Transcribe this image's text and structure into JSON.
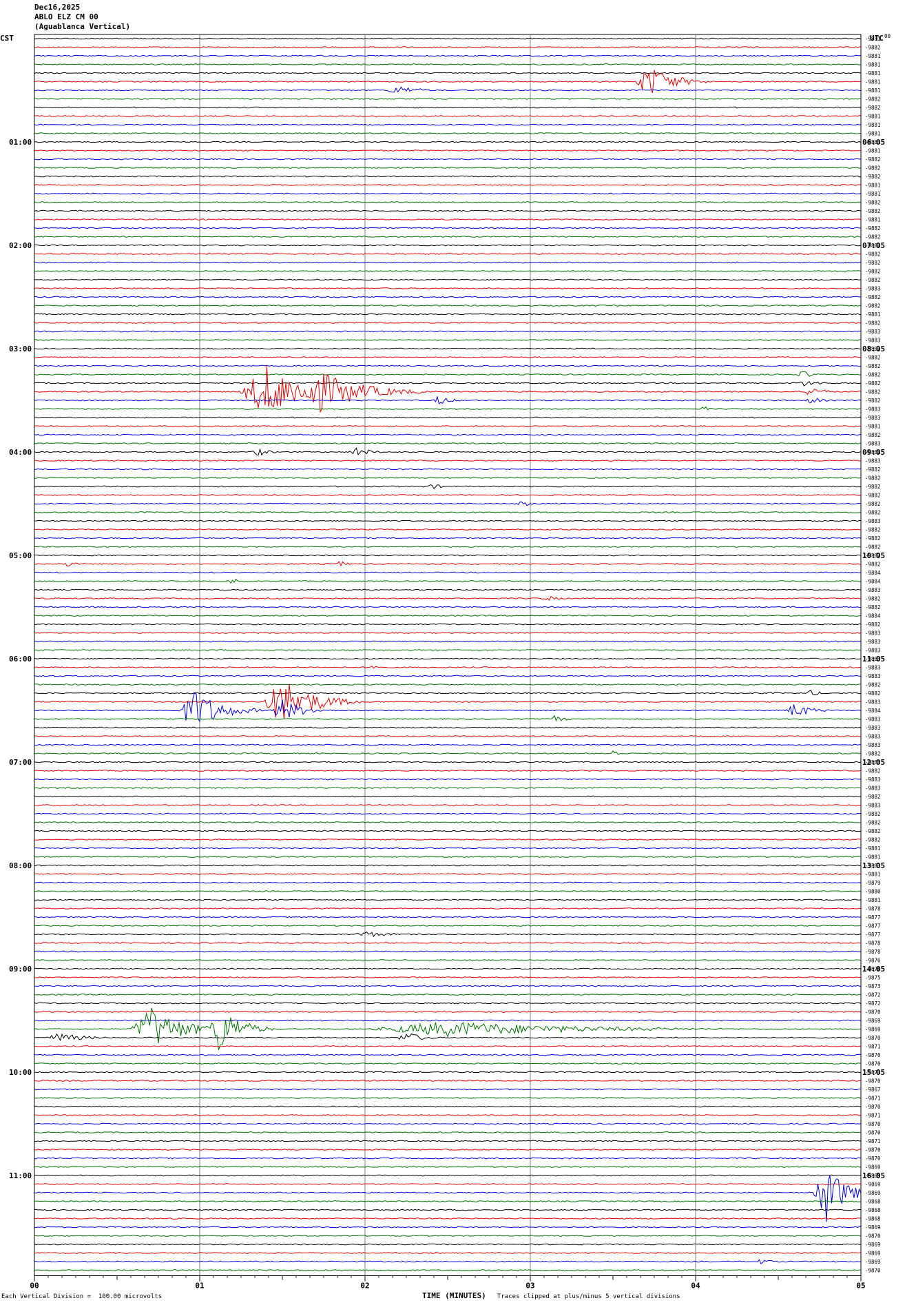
{
  "header": {
    "date": "Dec16,2025",
    "station": "ABLO ELZ CM 00",
    "location": "(Aguablanca Vertical)",
    "left_zone": "CST",
    "right_zone": "UTC"
  },
  "footer": {
    "scale_note": "Each Vertical Division =  100.00 microvolts",
    "xlabel": "TIME (MINUTES)",
    "clip_note": "Traces clipped at plus/minus 5 vertical divisions"
  },
  "colors": {
    "trace_cycle": [
      "#000000",
      "#e00000",
      "#0000e0",
      "#007000"
    ],
    "grid": "#808080"
  },
  "chart_data": {
    "type": "line",
    "title": "",
    "xlabel": "TIME (MINUTES)",
    "ylabel": "",
    "xlim": [
      0,
      5
    ],
    "x_ticks": [
      "00",
      "01",
      "02",
      "03",
      "04",
      "05"
    ],
    "trace_count": 144,
    "trace_interval_minutes": 5,
    "trace_color_order": [
      "black",
      "red",
      "blue",
      "green"
    ],
    "left_time_labels": [
      "01:00",
      "02:00",
      "03:00",
      "04:00",
      "05:00",
      "06:00",
      "07:00",
      "08:00",
      "09:00",
      "10:00",
      "11:00"
    ],
    "right_time_labels": [
      "06:05",
      "07:05",
      "08:05",
      "09:05",
      "10:05",
      "11:05",
      "12:05",
      "13:05",
      "14:05",
      "15:05",
      "16:05"
    ],
    "right_top_label": "00",
    "trace_levels": [
      "-9881",
      "-9882",
      "-9881",
      "-9881",
      "-9881",
      "-9881",
      "-9881",
      "-9882",
      "-9882",
      "-9881",
      "-9881",
      "-9881",
      "-9881",
      "-9881",
      "-9882",
      "-9882",
      "-9882",
      "-9881",
      "-9881",
      "-9882",
      "-9882",
      "-9881",
      "-9882",
      "-9882",
      "-9882",
      "-9882",
      "-9882",
      "-9882",
      "-9882",
      "-9883",
      "-9882",
      "-9882",
      "-9881",
      "-9882",
      "-9883",
      "-9883",
      "-9882",
      "-9882",
      "-9882",
      "-9882",
      "-9882",
      "-9882",
      "-9882",
      "-9883",
      "-9883",
      "-9881",
      "-9882",
      "-9883",
      "-9882",
      "-9883",
      "-9882",
      "-9882",
      "-9882",
      "-9882",
      "-9882",
      "-9882",
      "-9883",
      "-9882",
      "-9882",
      "-9882",
      "-9882",
      "-9882",
      "-9884",
      "-9884",
      "-9883",
      "-9882",
      "-9882",
      "-9884",
      "-9882",
      "-9883",
      "-9883",
      "-9883",
      "-9883",
      "-9883",
      "-9883",
      "-9882",
      "-9882",
      "-9883",
      "-9884",
      "-9883",
      "-9883",
      "-9883",
      "-9883",
      "-9882",
      "-9883",
      "-9882",
      "-9883",
      "-9883",
      "-9882",
      "-9883",
      "-9882",
      "-9882",
      "-9882",
      "-9882",
      "-9881",
      "-9881",
      "-9881",
      "-9881",
      "-9879",
      "-9880",
      "-9881",
      "-9878",
      "-9877",
      "-9877",
      "-9877",
      "-9878",
      "-9878",
      "-9876",
      "-9876",
      "-9875",
      "-9873",
      "-9872",
      "-9872",
      "-9870",
      "-9869",
      "-9869",
      "-9870",
      "-9871",
      "-9870",
      "-9870",
      "-9871",
      "-9870",
      "-9867",
      "-9871",
      "-9870",
      "-9871",
      "-9870",
      "-9870",
      "-9871",
      "-9870",
      "-9870",
      "-9869",
      "-9869",
      "-9869",
      "-9869",
      "-9868",
      "-9868",
      "-9868",
      "-9869",
      "-9870",
      "-9869",
      "-9869",
      "-9869",
      "-9870"
    ],
    "events": [
      {
        "trace": 5,
        "minute": 3.72,
        "amplitude": 2.2,
        "duration": 0.45
      },
      {
        "trace": 6,
        "minute": 2.2,
        "amplitude": 0.6,
        "duration": 0.4
      },
      {
        "trace": 39,
        "minute": 4.65,
        "amplitude": 0.5,
        "duration": 0.2
      },
      {
        "trace": 40,
        "minute": 4.65,
        "amplitude": 0.4,
        "duration": 0.4
      },
      {
        "trace": 41,
        "minute": 1.4,
        "amplitude": 3.5,
        "duration": 0.8
      },
      {
        "trace": 41,
        "minute": 1.7,
        "amplitude": 3.0,
        "duration": 0.8
      },
      {
        "trace": 41,
        "minute": 4.7,
        "amplitude": 0.9,
        "duration": 0.2
      },
      {
        "trace": 42,
        "minute": 2.45,
        "amplitude": 0.7,
        "duration": 0.2
      },
      {
        "trace": 42,
        "minute": 4.7,
        "amplitude": 0.5,
        "duration": 0.2
      },
      {
        "trace": 43,
        "minute": 4.05,
        "amplitude": 0.4,
        "duration": 0.1
      },
      {
        "trace": 48,
        "minute": 1.35,
        "amplitude": 0.6,
        "duration": 0.2
      },
      {
        "trace": 48,
        "minute": 1.95,
        "amplitude": 0.6,
        "duration": 0.3
      },
      {
        "trace": 52,
        "minute": 2.4,
        "amplitude": 0.4,
        "duration": 0.2
      },
      {
        "trace": 54,
        "minute": 2.95,
        "amplitude": 0.4,
        "duration": 0.2
      },
      {
        "trace": 61,
        "minute": 0.2,
        "amplitude": 0.7,
        "duration": 0.1
      },
      {
        "trace": 61,
        "minute": 1.85,
        "amplitude": 0.6,
        "duration": 0.1
      },
      {
        "trace": 63,
        "minute": 1.2,
        "amplitude": 0.4,
        "duration": 0.2
      },
      {
        "trace": 65,
        "minute": 3.1,
        "amplitude": 0.4,
        "duration": 0.2
      },
      {
        "trace": 73,
        "minute": 2.05,
        "amplitude": 0.4,
        "duration": 0.2
      },
      {
        "trace": 76,
        "minute": 4.7,
        "amplitude": 0.4,
        "duration": 0.2
      },
      {
        "trace": 77,
        "minute": 1.5,
        "amplitude": 3.2,
        "duration": 0.6
      },
      {
        "trace": 78,
        "minute": 0.97,
        "amplitude": 2.8,
        "duration": 0.5
      },
      {
        "trace": 78,
        "minute": 1.5,
        "amplitude": 1.5,
        "duration": 0.4
      },
      {
        "trace": 78,
        "minute": 4.6,
        "amplitude": 1.0,
        "duration": 0.3
      },
      {
        "trace": 79,
        "minute": 3.15,
        "amplitude": 0.5,
        "duration": 0.2
      },
      {
        "trace": 83,
        "minute": 3.5,
        "amplitude": 0.6,
        "duration": 0.1
      },
      {
        "trace": 104,
        "minute": 2.0,
        "amplitude": 0.4,
        "duration": 0.5
      },
      {
        "trace": 115,
        "minute": 0.7,
        "amplitude": 3.0,
        "duration": 0.6
      },
      {
        "trace": 115,
        "minute": 1.12,
        "amplitude": 3.2,
        "duration": 0.4
      },
      {
        "trace": 115,
        "minute": 2.5,
        "amplitude": 1.0,
        "duration": 2.5
      },
      {
        "trace": 116,
        "minute": 0.15,
        "amplitude": 0.6,
        "duration": 0.5
      },
      {
        "trace": 116,
        "minute": 2.25,
        "amplitude": 0.8,
        "duration": 0.3
      },
      {
        "trace": 134,
        "minute": 4.78,
        "amplitude": 4.5,
        "duration": 0.35
      },
      {
        "trace": 142,
        "minute": 4.4,
        "amplitude": 0.4,
        "duration": 0.2
      }
    ]
  }
}
